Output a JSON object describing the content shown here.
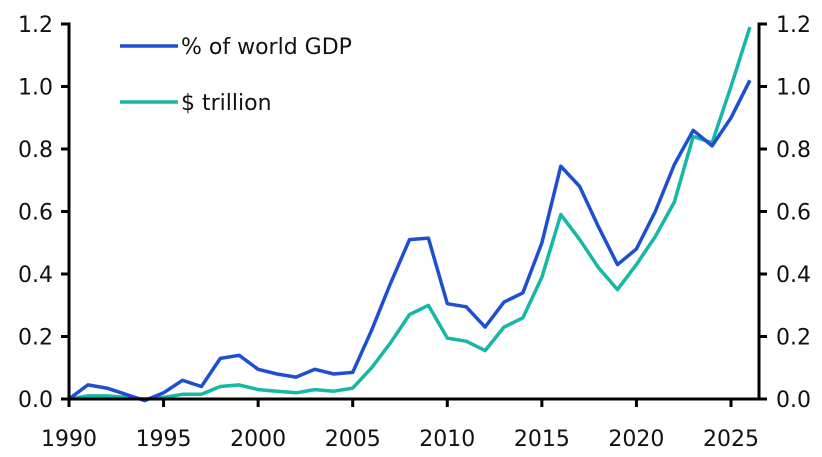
{
  "chart_data": {
    "type": "line",
    "title": "",
    "xlabel": "",
    "ylabel": "",
    "ylabel_right": "",
    "xlim": [
      1990,
      2026.5
    ],
    "ylim": [
      0,
      1.2
    ],
    "ylim_right": [
      0,
      1.2
    ],
    "grid": false,
    "legend_position": "top-left",
    "x_ticks": [
      "1990",
      "1995",
      "2000",
      "2005",
      "2010",
      "2015",
      "2020",
      "2025"
    ],
    "y_ticks": [
      "0.0",
      "0.2",
      "0.4",
      "0.6",
      "0.8",
      "1.0",
      "1.2"
    ],
    "y_ticks_right": [
      "0.0",
      "0.2",
      "0.4",
      "0.6",
      "0.8",
      "1.0",
      "1.2"
    ],
    "x": [
      1990,
      1991,
      1992,
      1993,
      1994,
      1995,
      1996,
      1997,
      1998,
      1999,
      2000,
      2001,
      2002,
      2003,
      2004,
      2005,
      2006,
      2007,
      2008,
      2009,
      2010,
      2011,
      2012,
      2013,
      2014,
      2015,
      2016,
      2017,
      2018,
      2019,
      2020,
      2021,
      2022,
      2023,
      2024,
      2025,
      2026
    ],
    "series": [
      {
        "name": "% of world GDP",
        "color": "#1f4fd1",
        "axis": "left",
        "values": [
          0.0,
          0.045,
          0.035,
          0.015,
          -0.005,
          0.02,
          0.06,
          0.04,
          0.13,
          0.14,
          0.095,
          0.08,
          0.07,
          0.095,
          0.08,
          0.085,
          0.22,
          0.37,
          0.51,
          0.515,
          0.305,
          0.295,
          0.23,
          0.31,
          0.34,
          0.5,
          0.745,
          0.68,
          0.55,
          0.43,
          0.48,
          0.6,
          0.75,
          0.86,
          0.81,
          0.9,
          1.02
        ]
      },
      {
        "name": "$ trillion",
        "color": "#14b8a6",
        "axis": "right",
        "values": [
          0.0,
          0.01,
          0.01,
          0.005,
          0.0,
          0.005,
          0.015,
          0.015,
          0.04,
          0.045,
          0.03,
          0.025,
          0.02,
          0.03,
          0.025,
          0.035,
          0.1,
          0.18,
          0.27,
          0.3,
          0.195,
          0.185,
          0.155,
          0.23,
          0.26,
          0.39,
          0.59,
          0.51,
          0.42,
          0.35,
          0.43,
          0.52,
          0.63,
          0.84,
          0.82,
          1.0,
          1.19
        ]
      }
    ]
  }
}
